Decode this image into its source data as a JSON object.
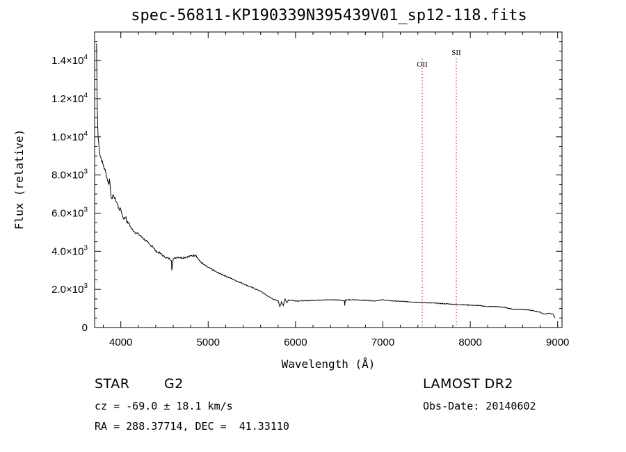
{
  "chart_data": {
    "type": "line",
    "title": "spec-56811-KP190339N395439V01_sp12-118.fits",
    "xlabel": "Wavelength (Å)",
    "ylabel": "Flux (relative)",
    "xlim": [
      3700,
      9050
    ],
    "ylim": [
      0,
      15500
    ],
    "x_ticks": [
      4000,
      5000,
      6000,
      7000,
      8000,
      9000
    ],
    "y_ticks": [
      {
        "value": 0,
        "mantissa": "0",
        "exponent": ""
      },
      {
        "value": 2000,
        "mantissa": "2.0×10",
        "exponent": "3"
      },
      {
        "value": 4000,
        "mantissa": "4.0×10",
        "exponent": "3"
      },
      {
        "value": 6000,
        "mantissa": "6.0×10",
        "exponent": "3"
      },
      {
        "value": 8000,
        "mantissa": "8.0×10",
        "exponent": "3"
      },
      {
        "value": 10000,
        "mantissa": "1.0×10",
        "exponent": "4"
      },
      {
        "value": 12000,
        "mantissa": "1.2×10",
        "exponent": "4"
      },
      {
        "value": 14000,
        "mantissa": "1.4×10",
        "exponent": "4"
      }
    ],
    "series": [
      {
        "x": [
          3722,
          3730,
          3740,
          3760,
          3800,
          3830,
          3860,
          3870,
          3890,
          3920,
          3960,
          3980,
          4000,
          4030,
          4060,
          4070,
          4090,
          4120,
          4160,
          4200,
          4250,
          4300,
          4340,
          4360,
          4400,
          4450,
          4500,
          4560,
          4580,
          4583,
          4600,
          4650,
          4700,
          4750,
          4800,
          4860,
          4900,
          4950,
          5000,
          5100,
          5200,
          5300,
          5400,
          5500,
          5600,
          5700,
          5760,
          5800,
          5820,
          5840,
          5860,
          5880,
          5900,
          5920,
          6000,
          6100,
          6300,
          6500,
          6560,
          6563,
          6570,
          6700,
          6900,
          7000,
          7100,
          7300,
          7500,
          7700,
          7900,
          8100,
          8200,
          8300,
          8400,
          8500,
          8600,
          8700,
          8800,
          8850,
          8900,
          8950,
          8970
        ],
        "y": [
          14900,
          11500,
          10000,
          9100,
          8500,
          8100,
          7500,
          7800,
          6800,
          6900,
          6500,
          6200,
          6200,
          5700,
          5800,
          5500,
          5500,
          5200,
          5000,
          4900,
          4700,
          4500,
          4300,
          4300,
          4000,
          3900,
          3700,
          3600,
          3500,
          3000,
          3600,
          3700,
          3650,
          3700,
          3750,
          3800,
          3500,
          3300,
          3150,
          2900,
          2700,
          2500,
          2300,
          2100,
          1900,
          1600,
          1450,
          1400,
          1100,
          1350,
          1150,
          1500,
          1300,
          1450,
          1400,
          1400,
          1450,
          1450,
          1400,
          1150,
          1450,
          1450,
          1400,
          1450,
          1400,
          1350,
          1300,
          1250,
          1200,
          1150,
          1100,
          1100,
          1050,
          950,
          950,
          900,
          800,
          700,
          750,
          700,
          500
        ]
      }
    ],
    "lines": [
      {
        "label": "OII",
        "x": 7450
      },
      {
        "label": "SII",
        "x": 7840
      }
    ],
    "colors": {
      "spectrum": "#000000",
      "line_marker": "#cc0000",
      "axes": "#000000"
    }
  },
  "footer": {
    "object_class": "STAR",
    "subclass": "G2",
    "redshift": "cz = -69.0 ± 18.1 km/s",
    "coords": "RA = 288.37714, DEC =  41.33110",
    "survey": "LAMOST DR2",
    "obs_date": "Obs-Date: 20140602"
  }
}
